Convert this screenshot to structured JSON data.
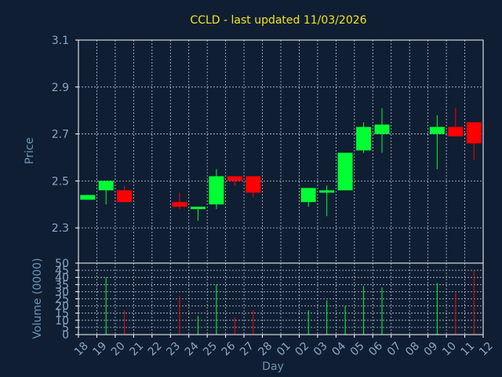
{
  "chart_data": {
    "type": "candlestick",
    "title": "CCLD - last updated 11/03/2026",
    "xlabel": "Day",
    "price_ylabel": "Price",
    "volume_ylabel": "Volume (0000)",
    "price_ylim": [
      2.15,
      3.1
    ],
    "price_yticks": [
      "3.1",
      "2.9",
      "2.7",
      "2.5",
      "2.3"
    ],
    "volume_ylim": [
      0,
      50
    ],
    "volume_yticks": [
      "50",
      "45",
      "40",
      "35",
      "30",
      "25",
      "20",
      "15",
      "10",
      "5",
      "0"
    ],
    "colors": {
      "up": "#00ff33",
      "down": "#ff0000",
      "background": "#0f1e33"
    },
    "days": [
      "18",
      "19",
      "20",
      "21",
      "22",
      "23",
      "24",
      "25",
      "26",
      "27",
      "28",
      "01",
      "02",
      "03",
      "04",
      "05",
      "06",
      "07",
      "08",
      "09",
      "10",
      "11",
      "12"
    ],
    "candles": [
      {
        "day": "18",
        "open": 2.42,
        "close": 2.44,
        "high": 2.44,
        "low": 2.42,
        "volume": 0
      },
      {
        "day": "19",
        "open": 2.46,
        "close": 2.5,
        "high": 2.5,
        "low": 2.4,
        "volume": 40
      },
      {
        "day": "20",
        "open": 2.46,
        "close": 2.41,
        "high": 2.48,
        "low": 2.41,
        "volume": 17
      },
      {
        "day": "23",
        "open": 2.41,
        "close": 2.39,
        "high": 2.45,
        "low": 2.38,
        "volume": 27
      },
      {
        "day": "24",
        "open": 2.38,
        "close": 2.39,
        "high": 2.39,
        "low": 2.33,
        "volume": 13
      },
      {
        "day": "25",
        "open": 2.4,
        "close": 2.52,
        "high": 2.55,
        "low": 2.38,
        "volume": 35
      },
      {
        "day": "26",
        "open": 2.52,
        "close": 2.5,
        "high": 2.52,
        "low": 2.48,
        "volume": 12
      },
      {
        "day": "27",
        "open": 2.52,
        "close": 2.45,
        "high": 2.52,
        "low": 2.43,
        "volume": 17
      },
      {
        "day": "02",
        "open": 2.41,
        "close": 2.47,
        "high": 2.47,
        "low": 2.39,
        "volume": 17
      },
      {
        "day": "03",
        "open": 2.45,
        "close": 2.46,
        "high": 2.48,
        "low": 2.35,
        "volume": 24
      },
      {
        "day": "04",
        "open": 2.46,
        "close": 2.62,
        "high": 2.62,
        "low": 2.46,
        "volume": 20
      },
      {
        "day": "05",
        "open": 2.63,
        "close": 2.73,
        "high": 2.75,
        "low": 2.62,
        "volume": 34
      },
      {
        "day": "06",
        "open": 2.7,
        "close": 2.74,
        "high": 2.81,
        "low": 2.62,
        "volume": 33
      },
      {
        "day": "09",
        "open": 2.7,
        "close": 2.73,
        "high": 2.78,
        "low": 2.55,
        "volume": 36
      },
      {
        "day": "10",
        "open": 2.73,
        "close": 2.69,
        "high": 2.81,
        "low": 2.69,
        "volume": 29
      },
      {
        "day": "11",
        "open": 2.75,
        "close": 2.66,
        "high": 2.75,
        "low": 2.59,
        "volume": 45
      }
    ]
  }
}
